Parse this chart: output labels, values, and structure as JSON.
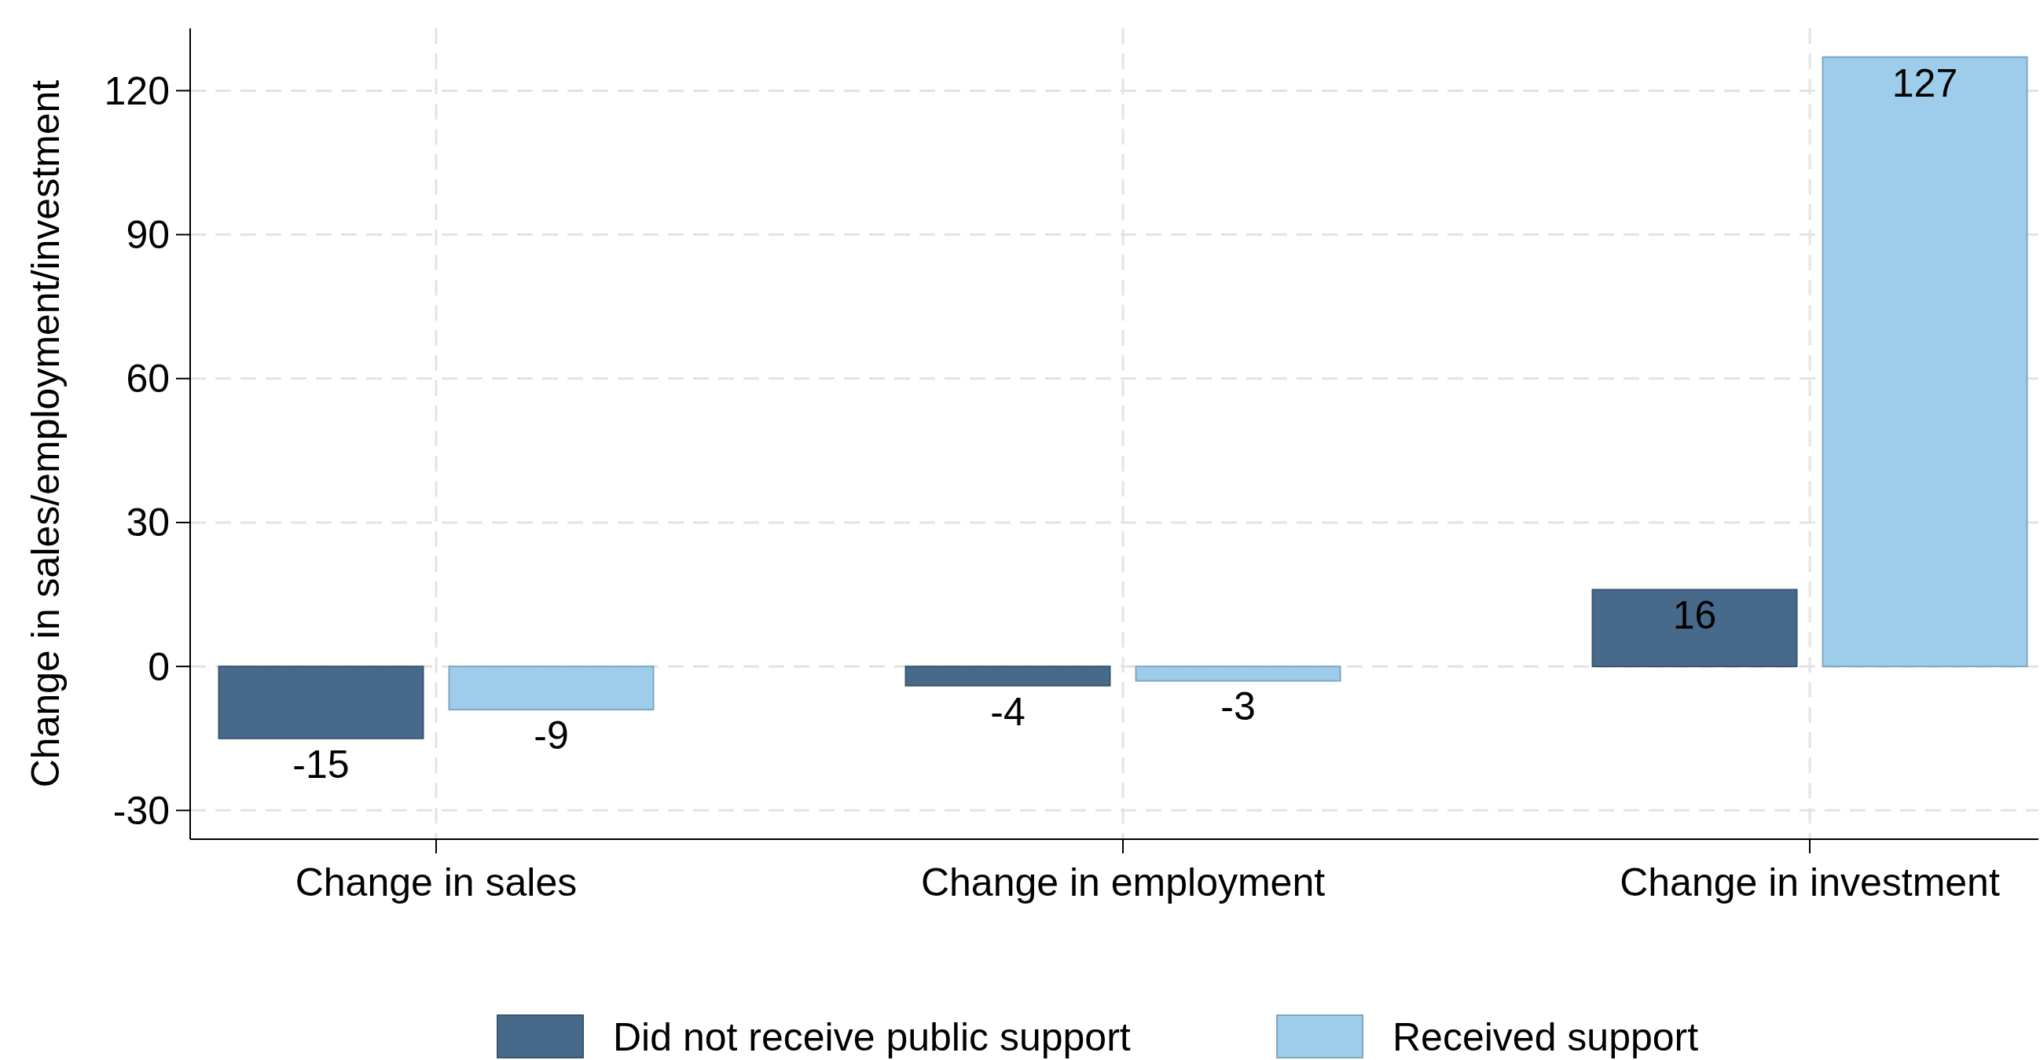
{
  "chart_data": {
    "type": "bar",
    "ylabel": "Change in sales/employment/investment",
    "categories": [
      "Change in sales",
      "Change in employment",
      "Change in investment"
    ],
    "series": [
      {
        "name": "Did not receive public support",
        "color": "#476a8a",
        "values": [
          -15,
          -4,
          16
        ]
      },
      {
        "name": "Received support",
        "color": "#9dcdeb",
        "values": [
          -9,
          -3,
          127
        ]
      }
    ],
    "ylim": [
      -36,
      133
    ],
    "yticks": [
      -30,
      0,
      30,
      60,
      90,
      120
    ],
    "grid": true,
    "legend": "bottom",
    "data_labels": true
  }
}
